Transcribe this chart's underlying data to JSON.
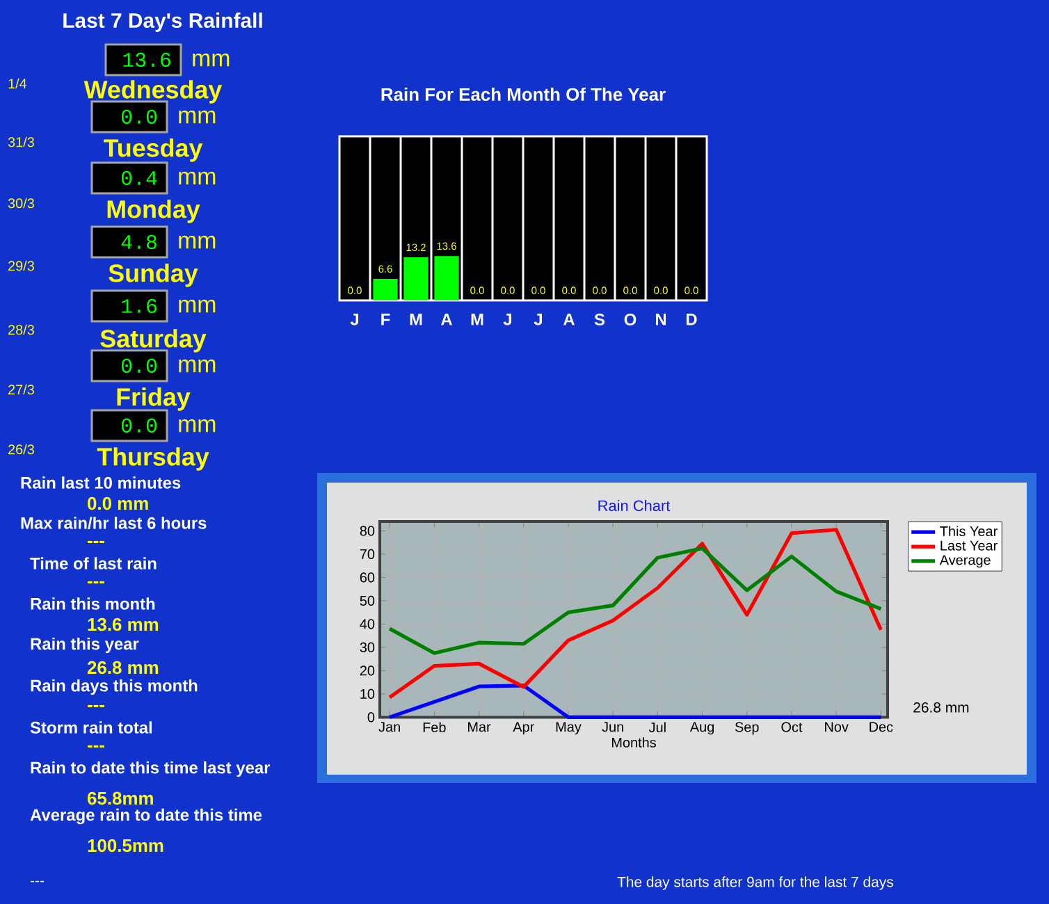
{
  "chart_data": [
    {
      "type": "other",
      "title": "Last 7 Day's Rainfall",
      "annotations": [
        "13.6",
        "mm",
        "1/4",
        "Wednesday",
        "0.0",
        "mm",
        "31/3",
        "Tuesday",
        "0.4",
        "mm",
        "30/3",
        "Monday",
        "4.8",
        "mm",
        "29/3",
        "Sunday",
        "1.6",
        "mm",
        "28/3",
        "Saturday",
        "0.0",
        "mm",
        "27/3",
        "Friday",
        "0.0",
        "mm",
        "26/3",
        "Thursday",
        "Rain last 10 minutes",
        "0.0 mm",
        "Max rain/hr last 6 hours",
        "---",
        "Time of last rain",
        "---",
        "Rain this month",
        "13.6 mm",
        "Rain this year",
        "26.8 mm",
        "Rain days this month",
        "---",
        "Storm rain total",
        "---",
        "Rain to date this time last year",
        "65.8mm",
        "Average rain to date this time",
        "100.5mm",
        "---",
        "The day starts after 9am for the last 7 days"
      ]
    },
    {
      "type": "bar",
      "title": "Rain For Each Month Of The Year",
      "categories": [
        "J",
        "F",
        "M",
        "A",
        "M",
        "J",
        "J",
        "A",
        "S",
        "O",
        "N",
        "D"
      ],
      "values": [
        0,
        6.6,
        13.2,
        13.6,
        0,
        0,
        0,
        0,
        0,
        0,
        0,
        0
      ],
      "value_labels": [
        "0.0",
        "6.6",
        "13.2",
        "13.6",
        "0.0",
        "0.0",
        "0.0",
        "0.0",
        "0.0",
        "0.0",
        "0.0",
        "0.0"
      ],
      "color": "#00ff00",
      "tick_labels": "x"
    },
    {
      "type": "line",
      "title": "Rain Chart",
      "xlabel": "Months",
      "categories": [
        "Jan",
        "Feb",
        "Mar",
        "Apr",
        "May",
        "Jun",
        "Jul",
        "Aug",
        "Sep",
        "Oct",
        "Nov",
        "Dec"
      ],
      "series": [
        {
          "name": "This Year",
          "color": "#0000ff",
          "values": [
            0,
            6.6,
            13.2,
            13.6,
            0,
            0,
            0,
            0,
            0,
            0,
            0,
            0
          ]
        },
        {
          "name": "Last Year",
          "color": "#ff0000",
          "values": [
            8.5,
            22,
            23,
            13,
            33,
            41.5,
            55.5,
            74.5,
            44,
            79,
            80.5,
            37.5
          ]
        },
        {
          "name": "Average",
          "color": "#007f00",
          "values": [
            38,
            27.5,
            32,
            31.5,
            45,
            48,
            68.5,
            72.5,
            54.5,
            69,
            54,
            46.5
          ]
        }
      ],
      "ylim": [
        0,
        84
      ],
      "yticks": [
        0,
        10,
        20,
        30,
        40,
        50,
        60,
        70,
        80
      ],
      "grid": true,
      "legend": "top right",
      "annotations": [
        "26.8 mm"
      ]
    }
  ]
}
